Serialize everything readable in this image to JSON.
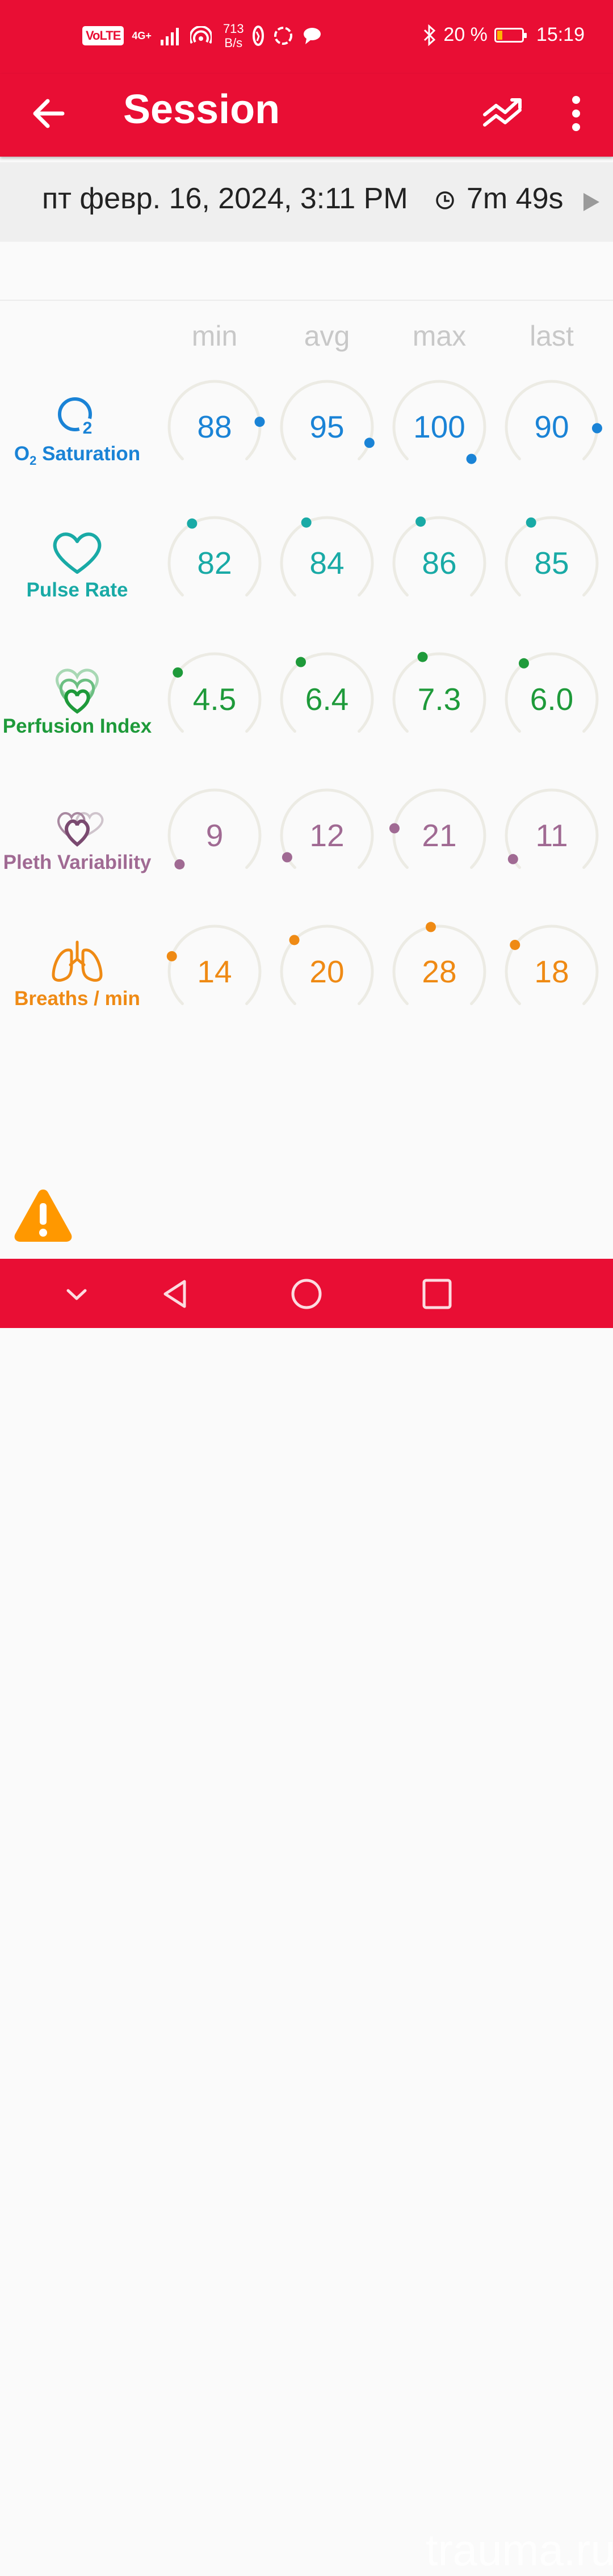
{
  "status_bar": {
    "volte": "VoLTE",
    "network": "4G+",
    "speed_value": "713",
    "speed_unit": "B/s",
    "battery_percent": "20 %",
    "battery_level": 0.2,
    "time": "15:19",
    "icons": [
      "signal-icon",
      "hotspot-icon",
      "vpn-icon",
      "sync-icon",
      "chat-icon",
      "bluetooth-icon",
      "battery-icon"
    ]
  },
  "app_bar": {
    "title": "Session",
    "icons": [
      "back-arrow-icon",
      "trend-icon",
      "more-vert-icon"
    ]
  },
  "session": {
    "date": "пт февр. 16, 2024, 3:11 PM",
    "duration": "7m 49s"
  },
  "columns": [
    "min",
    "avg",
    "max",
    "last"
  ],
  "colors": {
    "accent": "#e90e34",
    "o2": "#1a83d6",
    "pulse": "#19aaa6",
    "perfusion": "#1e9a3a",
    "pleth": "#a06a93",
    "breath": "#ef8a14",
    "track": "#ecebe4",
    "warning": "#ff9800"
  },
  "metrics": [
    {
      "label_main": "O",
      "label_sub": "2",
      "label_rest": " Saturation",
      "icon": "o2-icon",
      "color": "#1a83d6",
      "values": [
        "88",
        "95",
        "100",
        "90"
      ],
      "levels": [
        0.81,
        0.91,
        1.0,
        0.84
      ]
    },
    {
      "label": "Pulse Rate",
      "icon": "heart-icon",
      "color": "#19aaa6",
      "values": [
        "82",
        "84",
        "86",
        "85"
      ],
      "levels": [
        0.39,
        0.4,
        0.41,
        0.4
      ]
    },
    {
      "label": "Perfusion Index",
      "icon": "perfusion-heart-icon",
      "color": "#1e9a3a",
      "values": [
        "4.5",
        "6.4",
        "7.3",
        "6.0"
      ],
      "levels": [
        0.3,
        0.37,
        0.42,
        0.36
      ]
    },
    {
      "label": "Pleth Variability",
      "icon": "pleth-heart-icon",
      "color": "#a06a93",
      "values": [
        "9",
        "12",
        "21",
        "11"
      ],
      "levels": [
        0.02,
        0.06,
        0.2,
        0.05
      ]
    },
    {
      "label": "Breaths / min",
      "icon": "lungs-icon",
      "color": "#ef8a14",
      "values": [
        "14",
        "20",
        "28",
        "18"
      ],
      "levels": [
        0.24,
        0.33,
        0.46,
        0.3
      ]
    }
  ],
  "watermark": "trauma.ru"
}
